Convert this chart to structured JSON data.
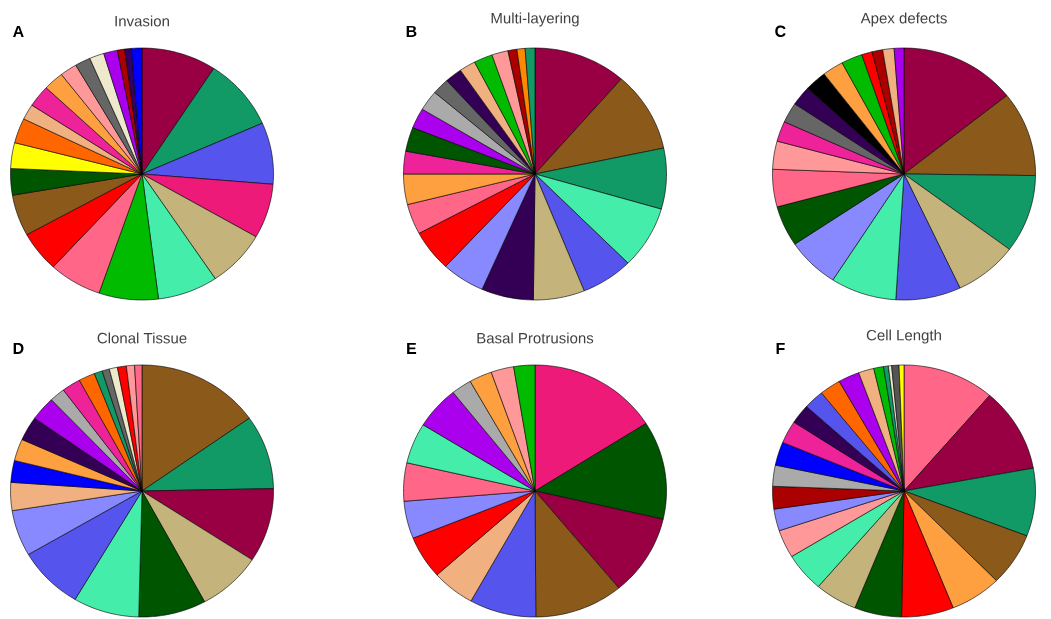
{
  "chart_data": [
    {
      "type": "pie",
      "title": "Invasion",
      "annotations": [
        "A"
      ],
      "categories": [
        null,
        null,
        null,
        null,
        null,
        null,
        null,
        null,
        null,
        null,
        null,
        null,
        null,
        null,
        null,
        null,
        null,
        null,
        null,
        null,
        null,
        null,
        null
      ],
      "values": [
        9.2,
        9.2,
        7.9,
        7.0,
        7.3,
        7.4,
        7.3,
        6.5,
        5.2,
        5.3,
        3.4,
        3.3,
        3.2,
        2.0,
        2.8,
        2.5,
        2.1,
        1.9,
        1.8,
        1.7,
        0.9,
        0.8,
        1.3
      ],
      "colors": [
        "#990044",
        "#119966",
        "#5555ee",
        "#ee1a7a",
        "#c4b47c",
        "#44eeaa",
        "#00bb00",
        "#ff6688",
        "#ff0000",
        "#8b5a1a",
        "#005500",
        "#ffff00",
        "#ff6600",
        "#f0b080",
        "#ee2299",
        "#ffa040",
        "#ff9999",
        "#666666",
        "#eee8cc",
        "#aa00ee",
        "#aa0000",
        "#330066",
        "#0000ff"
      ]
    },
    {
      "type": "pie",
      "title": "Multi-layering",
      "annotations": [
        "B"
      ],
      "categories": [
        null,
        null,
        null,
        null,
        null,
        null,
        null,
        null,
        null,
        null,
        null,
        null,
        null,
        null,
        null,
        null,
        null,
        null,
        null,
        null,
        null,
        null,
        null
      ],
      "values": [
        11.4,
        10.3,
        7.8,
        8.0,
        6.4,
        6.3,
        6.4,
        5.3,
        5.3,
        3.9,
        3.9,
        2.9,
        3.1,
        2.6,
        2.6,
        2.1,
        2.1,
        2.0,
        2.3,
        2.0,
        1.1,
        1.0,
        1.2
      ],
      "colors": [
        "#990044",
        "#8b5a1a",
        "#119966",
        "#44eeaa",
        "#5555ee",
        "#c4b47c",
        "#330055",
        "#8888ff",
        "#ff0000",
        "#ff6688",
        "#ffa040",
        "#ee2299",
        "#005500",
        "#aa00ee",
        "#aaaaaa",
        "#666666",
        "#330055",
        "#f0b080",
        "#00bb00",
        "#ff9999",
        "#aa0000",
        "#ff8800",
        "#119966"
      ]
    },
    {
      "type": "pie",
      "title": "Apex defects",
      "annotations": [
        "C"
      ],
      "categories": [
        null,
        null,
        null,
        null,
        null,
        null,
        null,
        null,
        null,
        null,
        null,
        null,
        null,
        null,
        null,
        null,
        null,
        null,
        null,
        null
      ],
      "values": [
        14.3,
        10.9,
        10.0,
        7.8,
        8.0,
        8.1,
        6.5,
        5.2,
        4.8,
        3.6,
        2.6,
        2.6,
        2.5,
        2.7,
        2.6,
        2.6,
        1.3,
        1.3,
        1.4,
        1.2
      ],
      "colors": [
        "#990044",
        "#8b5a1a",
        "#119966",
        "#c4b47c",
        "#5555ee",
        "#44eeaa",
        "#8888ff",
        "#005500",
        "#ff6688",
        "#ff9999",
        "#ee2299",
        "#666666",
        "#330055",
        "#000000",
        "#ffa040",
        "#00bb00",
        "#ff0000",
        "#aa0000",
        "#f0b080",
        "#aa00ee"
      ]
    },
    {
      "type": "pie",
      "title": "Clonal Tissue",
      "annotations": [
        "D"
      ],
      "categories": [
        null,
        null,
        null,
        null,
        null,
        null,
        null,
        null,
        null,
        null,
        null,
        null,
        null,
        null,
        null,
        null,
        null,
        null,
        null,
        null,
        null,
        null
      ],
      "values": [
        15.2,
        9.5,
        9.5,
        7.9,
        8.3,
        8.1,
        8.1,
        5.9,
        3.6,
        2.8,
        2.8,
        3.1,
        3.1,
        1.9,
        2.3,
        2.0,
        1.0,
        0.9,
        1.0,
        1.1,
        1.0,
        0.9
      ],
      "colors": [
        "#8b5a1a",
        "#119966",
        "#990044",
        "#c4b47c",
        "#005500",
        "#44eeaa",
        "#5555ee",
        "#8888ff",
        "#f0b080",
        "#0000ff",
        "#ffa040",
        "#330055",
        "#aa00ee",
        "#aaaaaa",
        "#ee2299",
        "#ff6600",
        "#119966",
        "#666666",
        "#eee8cc",
        "#ff0000",
        "#ff9999",
        "#ff6688"
      ]
    },
    {
      "type": "pie",
      "title": "Basal Protrusions",
      "annotations": [
        "E"
      ],
      "categories": [
        null,
        null,
        null,
        null,
        null,
        null,
        null,
        null,
        null,
        null,
        null,
        null,
        null,
        null,
        null
      ],
      "values": [
        16.0,
        12.6,
        10.4,
        10.9,
        8.2,
        5.3,
        5.5,
        4.8,
        4.9,
        5.2,
        5.5,
        2.5,
        2.8,
        2.8,
        2.6
      ],
      "colors": [
        "#ee1a7a",
        "#005500",
        "#990044",
        "#8b5a1a",
        "#5555ee",
        "#f0b080",
        "#ff0000",
        "#8888ff",
        "#ff6688",
        "#44eeaa",
        "#aa00ee",
        "#aaaaaa",
        "#ffa040",
        "#ff9999",
        "#00bb00"
      ]
    },
    {
      "type": "pie",
      "title": "Cell Length",
      "annotations": [
        "F"
      ],
      "categories": [
        null,
        null,
        null,
        null,
        null,
        null,
        null,
        null,
        null,
        null,
        null,
        null,
        null,
        null,
        null,
        null,
        null,
        null,
        null,
        null,
        null,
        null,
        null,
        null,
        null
      ],
      "values": [
        11.3,
        10.8,
        8.7,
        6.8,
        6.3,
        6.4,
        5.8,
        5.2,
        5.0,
        3.6,
        2.8,
        2.9,
        2.7,
        3.0,
        2.9,
        2.5,
        2.5,
        2.6,
        2.6,
        1.9,
        1.2,
        0.6,
        0.4,
        0.9,
        0.6
      ],
      "colors": [
        "#ff6688",
        "#990044",
        "#119966",
        "#8b5a1a",
        "#ffa040",
        "#ff0000",
        "#005500",
        "#c4b47c",
        "#44eeaa",
        "#ff9999",
        "#8888ff",
        "#aa0000",
        "#aaaaaa",
        "#0000ff",
        "#ee2299",
        "#330055",
        "#5555ee",
        "#ff6600",
        "#aa00ee",
        "#f0b080",
        "#00bb00",
        "#119966",
        "#eee8cc",
        "#555555",
        "#ffff00"
      ]
    }
  ]
}
